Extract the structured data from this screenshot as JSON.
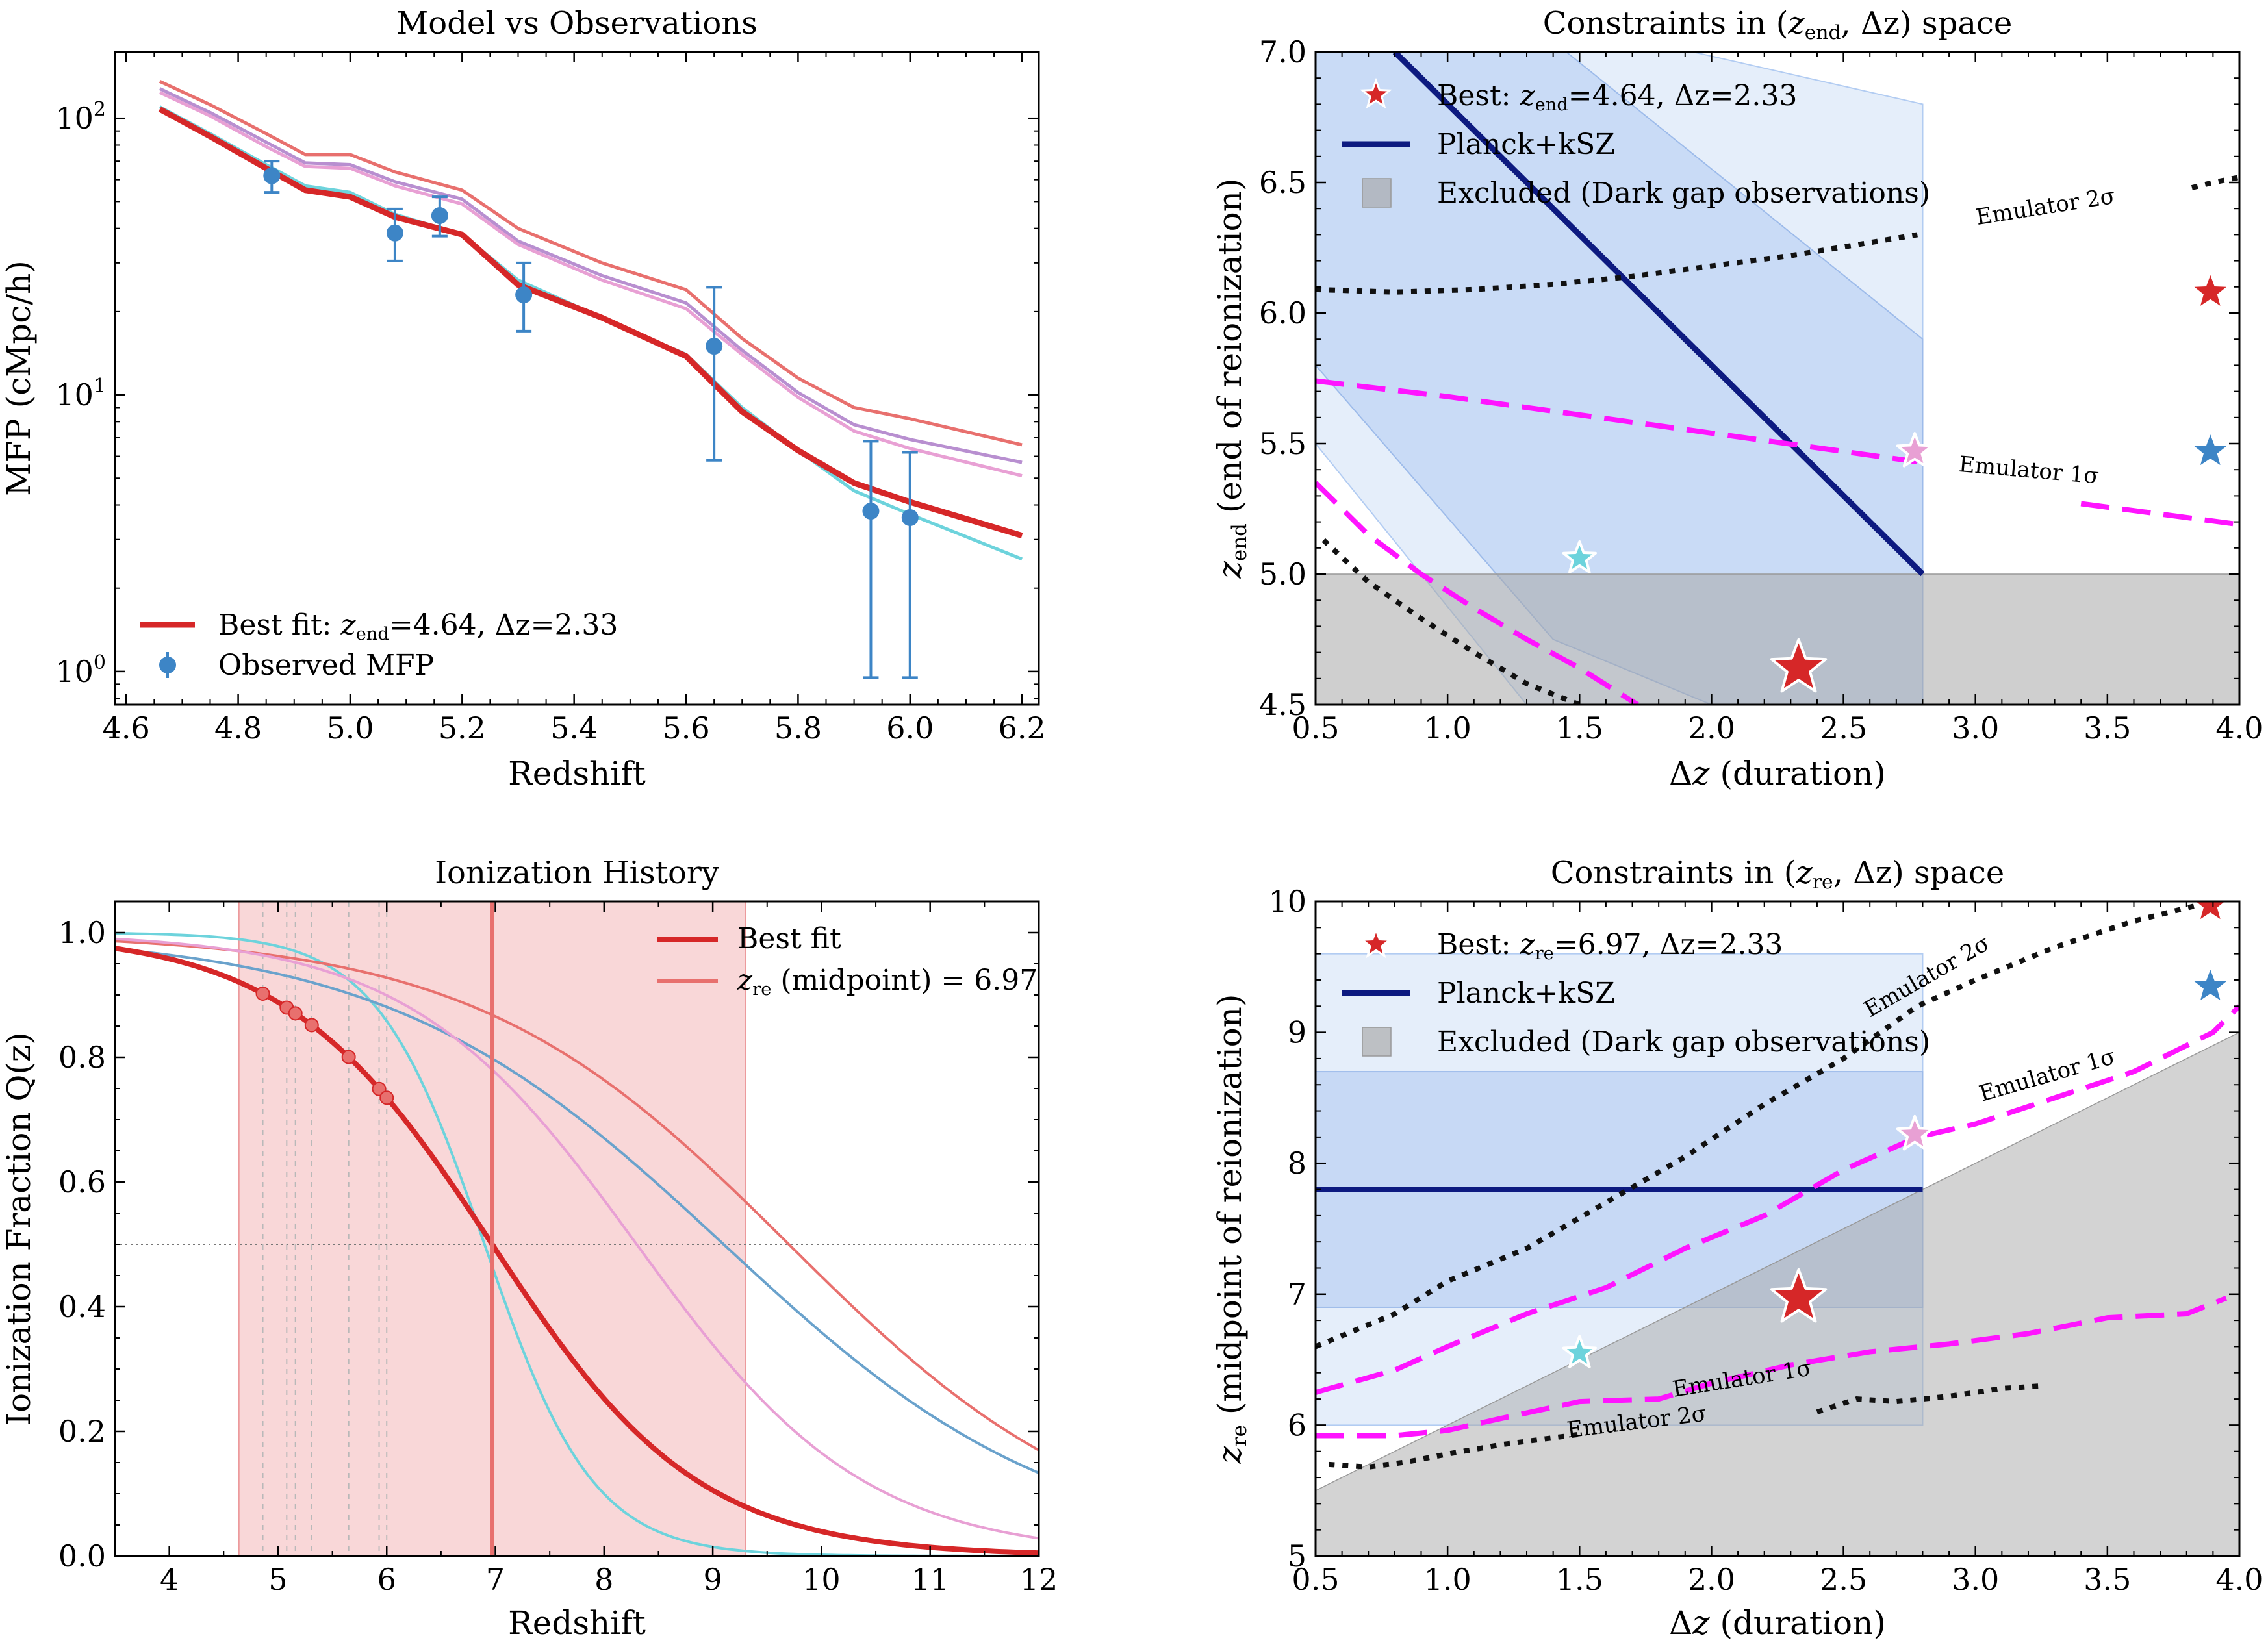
{
  "colors": {
    "red": "#d62728",
    "lightred": "#e8706e",
    "cyan": "#6dd3dc",
    "blue": "#6aa2cc",
    "pink": "#e8a0d4",
    "purple": "#b88fd0",
    "obs": "#3d85c6",
    "navy": "#0d1a80",
    "magenta": "#ff14ff",
    "gray": "#c8c8c8",
    "band": "#cfe0f6",
    "band2": "#b2ccf2",
    "redband": "#f6c6c8"
  },
  "chart_data": [
    {
      "id": "mfp",
      "type": "line",
      "title": "Model vs Observations",
      "xlabel": "Redshift",
      "ylabel": "MFP (cMpc/h)",
      "xlim": [
        4.58,
        6.23
      ],
      "ylim_log10": [
        -0.12,
        2.24
      ],
      "yscale": "log",
      "xticks": [
        "4.6",
        "4.8",
        "5.0",
        "5.2",
        "5.4",
        "5.6",
        "5.8",
        "6.0",
        "6.2"
      ],
      "yticks": [
        "10^0",
        "10^1",
        "10^2"
      ],
      "yticks_log10": [
        0,
        1,
        2
      ],
      "legend": [
        {
          "label_pre": "Best fit: ",
          "label_z": "z",
          "label_sub": "end",
          "label_post": "=4.64, Δz=2.33",
          "kind": "line"
        },
        {
          "label_pre": "Observed MFP",
          "label_z": "",
          "label_sub": "",
          "label_post": "",
          "kind": "point"
        }
      ],
      "series": [
        {
          "name": "model-salmon",
          "color": "lightred",
          "width": 5,
          "x": [
            4.66,
            4.75,
            4.85,
            4.92,
            5.0,
            5.08,
            5.2,
            5.3,
            5.45,
            5.6,
            5.7,
            5.8,
            5.9,
            6.0,
            6.2
          ],
          "y": [
            136,
            112,
            88,
            74,
            74,
            64,
            55,
            40,
            30,
            24,
            16,
            11.5,
            9.0,
            8.2,
            6.6
          ]
        },
        {
          "name": "model-purple",
          "color": "purple",
          "width": 5,
          "x": [
            4.66,
            4.75,
            4.85,
            4.92,
            5.0,
            5.08,
            5.2,
            5.3,
            5.45,
            5.6,
            5.7,
            5.8,
            5.9,
            6.0,
            6.2
          ],
          "y": [
            128,
            105,
            82,
            69,
            68,
            59,
            51,
            36,
            27,
            21.5,
            14.5,
            10.2,
            7.8,
            6.9,
            5.7
          ]
        },
        {
          "name": "model-pink",
          "color": "pink",
          "width": 5,
          "x": [
            4.66,
            4.75,
            4.85,
            4.92,
            5.0,
            5.08,
            5.2,
            5.3,
            5.45,
            5.6,
            5.7,
            5.8,
            5.9,
            6.0,
            6.2
          ],
          "y": [
            124,
            102,
            79,
            67,
            66,
            57,
            49,
            35,
            26,
            20.5,
            14,
            9.8,
            7.4,
            6.4,
            5.1
          ]
        },
        {
          "name": "model-cyan",
          "color": "cyan",
          "width": 5,
          "x": [
            4.66,
            4.75,
            4.85,
            4.92,
            5.0,
            5.08,
            5.2,
            5.3,
            5.45,
            5.6,
            5.7,
            5.8,
            5.9,
            6.0,
            6.2
          ],
          "y": [
            110,
            88,
            68,
            57,
            54,
            45,
            38,
            26,
            19,
            14,
            9.0,
            6.3,
            4.5,
            3.7,
            2.55
          ]
        },
        {
          "name": "best-fit",
          "color": "red",
          "width": 9,
          "x": [
            4.66,
            4.75,
            4.85,
            4.92,
            5.0,
            5.08,
            5.2,
            5.3,
            5.45,
            5.6,
            5.7,
            5.8,
            5.9,
            6.0,
            6.2
          ],
          "y": [
            108,
            86,
            66,
            55,
            52,
            44,
            38,
            25,
            19,
            13.8,
            8.7,
            6.3,
            4.8,
            4.1,
            3.1
          ]
        }
      ],
      "observations": {
        "x": [
          4.86,
          5.08,
          5.16,
          5.31,
          5.65,
          5.93,
          6.0
        ],
        "y": [
          62,
          38.5,
          44.5,
          23,
          15,
          3.8,
          3.6
        ],
        "ylo": [
          54,
          30.5,
          37.5,
          17,
          5.8,
          0.95,
          0.95
        ],
        "yhi": [
          70,
          47,
          52,
          30,
          24.5,
          6.8,
          6.2
        ]
      }
    },
    {
      "id": "zend",
      "type": "scatter",
      "title_pre": "Constraints in (",
      "title_z": "z",
      "title_sub": "end",
      "title_post": ", Δz) space",
      "xlabel_pre": "Δ",
      "xlabel_z": "z",
      "xlabel_post": " (duration)",
      "ylabel_z": "z",
      "ylabel_sub": "end",
      "ylabel_post": " (end of reionization)",
      "xlim": [
        0.5,
        4.0
      ],
      "ylim": [
        4.5,
        7.0
      ],
      "xticks": [
        "0.5",
        "1.0",
        "1.5",
        "2.0",
        "2.5",
        "3.0",
        "3.5",
        "4.0"
      ],
      "yticks": [
        "4.5",
        "5.0",
        "5.5",
        "6.0",
        "6.5",
        "7.0"
      ],
      "legend": [
        {
          "pre": "Best: ",
          "z": "z",
          "sub": "end",
          "post": "=4.64, Δz=2.33",
          "kind": "star"
        },
        {
          "pre": "Planck+kSZ",
          "z": "",
          "sub": "",
          "post": "",
          "kind": "line"
        },
        {
          "pre": "Excluded (Dark gap observations)",
          "z": "",
          "sub": "",
          "post": "",
          "kind": "box"
        }
      ],
      "excluded": {
        "y_below": 5.0,
        "x_max": 4.0
      },
      "planck_line": {
        "x": [
          0.8,
          2.8
        ],
        "y": [
          7.0,
          5.0
        ]
      },
      "band_outer": [
        [
          0.5,
          5.5
        ],
        [
          0.5,
          7.0
        ],
        [
          1.93,
          7.0
        ],
        [
          2.8,
          6.8
        ],
        [
          2.8,
          4.5
        ],
        [
          1.3,
          4.5
        ]
      ],
      "band_inner": [
        [
          0.5,
          6.4
        ],
        [
          0.5,
          7.0
        ],
        [
          1.45,
          7.0
        ],
        [
          2.8,
          5.9
        ],
        [
          2.8,
          4.5
        ],
        [
          2.0,
          4.5
        ],
        [
          1.4,
          4.75
        ],
        [
          0.5,
          5.8
        ]
      ],
      "emulator1": {
        "x": [
          0.5,
          1.0,
          1.5,
          2.0,
          2.5,
          2.78
        ],
        "y": [
          5.74,
          5.68,
          5.61,
          5.54,
          5.47,
          5.43
        ],
        "label": "Emulator 1σ"
      },
      "emulator1_right": {
        "x": [
          3.4,
          3.7,
          4.0
        ],
        "y": [
          5.27,
          5.23,
          5.19
        ]
      },
      "emulator1_lower": {
        "x": [
          0.5,
          0.7,
          0.9,
          1.1,
          1.3,
          1.5,
          1.72
        ],
        "y": [
          5.35,
          5.15,
          5.0,
          4.87,
          4.75,
          4.64,
          4.5
        ]
      },
      "emulator2": {
        "x": [
          0.5,
          0.8,
          1.1,
          1.4,
          1.7,
          2.0,
          2.3,
          2.6,
          2.78
        ],
        "y": [
          6.09,
          6.08,
          6.09,
          6.11,
          6.14,
          6.18,
          6.22,
          6.27,
          6.3
        ],
        "label": "Emulator 2σ"
      },
      "emulator2_right": {
        "x": [
          3.82,
          3.9,
          4.0
        ],
        "y": [
          6.48,
          6.5,
          6.52
        ]
      },
      "emulator2_lower": {
        "x": [
          0.53,
          0.7,
          0.9,
          1.1,
          1.3,
          1.5
        ],
        "y": [
          5.13,
          4.97,
          4.83,
          4.7,
          4.58,
          4.5
        ]
      },
      "stars": [
        {
          "x": 2.33,
          "y": 4.64,
          "color": "red",
          "size": 44,
          "edge": true
        },
        {
          "x": 2.77,
          "y": 5.47,
          "color": "pink",
          "size": 28,
          "edge": true
        },
        {
          "x": 1.5,
          "y": 5.06,
          "color": "cyan",
          "size": 26,
          "edge": true
        },
        {
          "x": 3.89,
          "y": 6.08,
          "color": "red",
          "size": 26,
          "edge": false
        },
        {
          "x": 3.89,
          "y": 5.47,
          "color": "obs",
          "size": 26,
          "edge": false
        }
      ]
    },
    {
      "id": "ionization",
      "type": "line",
      "title": "Ionization History",
      "xlabel": "Redshift",
      "ylabel": "Ionization Fraction Q(z)",
      "xlim": [
        3.5,
        12.0
      ],
      "ylim": [
        0.0,
        1.05
      ],
      "xticks": [
        "4",
        "5",
        "6",
        "7",
        "8",
        "9",
        "10",
        "11",
        "12"
      ],
      "yticks": [
        "0.0",
        "0.2",
        "0.4",
        "0.6",
        "0.8",
        "1.0"
      ],
      "legend": [
        {
          "pre": "Best fit",
          "z": "",
          "sub": "",
          "post": "",
          "color": "red"
        },
        {
          "pre": "",
          "z": "z",
          "sub": "re",
          "post": " (midpoint) = 6.97",
          "color": "lightred"
        }
      ],
      "shaded_range": [
        4.64,
        9.3
      ],
      "midpoint": 6.97,
      "hline": 0.5,
      "obs_redshifts": [
        4.86,
        5.08,
        5.16,
        5.31,
        5.65,
        5.93,
        6.0
      ],
      "series": [
        {
          "name": "model-cyan",
          "color": "cyan",
          "width": 4,
          "midpoint": 6.9,
          "scale": 0.5
        },
        {
          "name": "model-blue",
          "color": "blue",
          "width": 4,
          "midpoint": 9.1,
          "scale": 1.55
        },
        {
          "name": "model-salmon",
          "color": "lightred",
          "width": 4,
          "midpoint": 9.7,
          "scale": 1.45
        },
        {
          "name": "model-pink",
          "color": "pink",
          "width": 4,
          "midpoint": 8.3,
          "scale": 1.05
        },
        {
          "name": "best-fit",
          "color": "red",
          "width": 8,
          "midpoint": 6.97,
          "scale": 0.95
        }
      ]
    },
    {
      "id": "zre",
      "type": "scatter",
      "title_pre": "Constraints in (",
      "title_z": "z",
      "title_sub": "re",
      "title_post": ", Δz) space",
      "xlabel_pre": "Δ",
      "xlabel_z": "z",
      "xlabel_post": " (duration)",
      "ylabel_z": "z",
      "ylabel_sub": "re",
      "ylabel_post": " (midpoint of reionization)",
      "xlim": [
        0.5,
        4.0
      ],
      "ylim": [
        5.0,
        10.0
      ],
      "xticks": [
        "0.5",
        "1.0",
        "1.5",
        "2.0",
        "2.5",
        "3.0",
        "3.5",
        "4.0"
      ],
      "yticks": [
        "5",
        "6",
        "7",
        "8",
        "9",
        "10"
      ],
      "legend": [
        {
          "pre": "Best: ",
          "z": "z",
          "sub": "re",
          "post": "=6.97, Δz=2.33",
          "kind": "star"
        },
        {
          "pre": "Planck+kSZ",
          "z": "",
          "sub": "",
          "post": "",
          "kind": "line"
        },
        {
          "pre": "Excluded (Dark gap observations)",
          "z": "",
          "sub": "",
          "post": "",
          "kind": "box"
        }
      ],
      "excluded_poly": [
        [
          0.5,
          5.5
        ],
        [
          4.0,
          9.0
        ],
        [
          4.0,
          5.0
        ],
        [
          0.5,
          5.0
        ]
      ],
      "band_outer": [
        0.5,
        2.8,
        6.0,
        9.6
      ],
      "band_inner": [
        0.5,
        2.8,
        6.9,
        8.7
      ],
      "planck_line": {
        "x": [
          0.5,
          2.8
        ],
        "y": [
          7.8,
          7.8
        ]
      },
      "emulator1_upper": {
        "x": [
          0.5,
          0.8,
          1.0,
          1.3,
          1.6,
          1.9,
          2.2,
          2.5,
          2.78,
          3.0,
          3.3,
          3.6,
          3.9,
          4.0
        ],
        "y": [
          6.25,
          6.42,
          6.6,
          6.85,
          7.05,
          7.35,
          7.6,
          7.95,
          8.2,
          8.3,
          8.5,
          8.7,
          9.0,
          9.2
        ],
        "label": "Emulator 1σ"
      },
      "emulator1_lower": {
        "x": [
          0.5,
          0.8,
          1.0,
          1.2,
          1.5,
          1.8,
          2.0,
          2.3,
          2.6,
          2.9,
          3.2,
          3.5,
          3.8,
          3.95
        ],
        "y": [
          5.92,
          5.92,
          5.96,
          6.05,
          6.18,
          6.2,
          6.32,
          6.46,
          6.56,
          6.62,
          6.7,
          6.82,
          6.85,
          6.97
        ],
        "label": "Emulator 1σ"
      },
      "emulator2_upper": {
        "x": [
          0.5,
          0.8,
          1.0,
          1.3,
          1.6,
          1.9,
          2.2,
          2.5,
          2.78,
          3.0,
          3.3,
          3.6,
          3.9
        ],
        "y": [
          6.6,
          6.85,
          7.1,
          7.35,
          7.7,
          8.05,
          8.45,
          8.8,
          9.2,
          9.4,
          9.65,
          9.85,
          10.0
        ],
        "label": "Emulator 2σ"
      },
      "emulator2_lower": [
        {
          "x": [
            0.55,
            0.7,
            0.85,
            1.0,
            1.2,
            1.5
          ],
          "y": [
            5.7,
            5.68,
            5.72,
            5.78,
            5.85,
            5.93
          ]
        },
        {
          "x": [
            2.4,
            2.55,
            2.7,
            2.9,
            3.1,
            3.25
          ],
          "y": [
            6.1,
            6.2,
            6.18,
            6.22,
            6.28,
            6.3
          ]
        }
      ],
      "emulator2_lower_label": "Emulator 2σ",
      "stars": [
        {
          "x": 2.33,
          "y": 6.97,
          "color": "red",
          "size": 44,
          "edge": true
        },
        {
          "x": 2.77,
          "y": 8.22,
          "color": "pink",
          "size": 28,
          "edge": true
        },
        {
          "x": 1.5,
          "y": 6.55,
          "color": "cyan",
          "size": 26,
          "edge": true
        },
        {
          "x": 3.89,
          "y": 9.97,
          "color": "red",
          "size": 26,
          "edge": false
        },
        {
          "x": 3.89,
          "y": 9.35,
          "color": "obs",
          "size": 26,
          "edge": false
        }
      ]
    }
  ]
}
